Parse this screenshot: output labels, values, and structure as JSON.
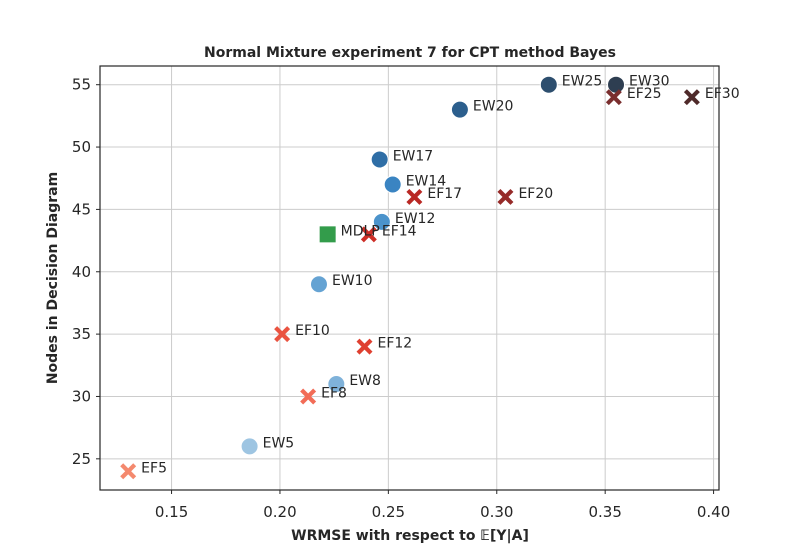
{
  "chart_data": {
    "type": "scatter",
    "title": "Normal Mixture experiment 7 for CPT method Bayes",
    "xlabel": "WRMSE with respect to 𝔼[Y|A]",
    "ylabel": "Nodes in Decision Diagram",
    "xlim": [
      0.117,
      0.4025
    ],
    "ylim": [
      22.5,
      56.5
    ],
    "xticks": [
      0.15,
      0.2,
      0.25,
      0.3,
      0.35,
      0.4
    ],
    "xtick_labels": [
      "0.15",
      "0.20",
      "0.25",
      "0.30",
      "0.35",
      "0.40"
    ],
    "yticks": [
      25,
      30,
      35,
      40,
      45,
      50,
      55
    ],
    "ytick_labels": [
      "25",
      "30",
      "35",
      "40",
      "45",
      "50",
      "55"
    ],
    "grid": true,
    "points": [
      {
        "label": "EF5",
        "x": 0.13,
        "y": 24,
        "marker": "x",
        "color": "#f4896e"
      },
      {
        "label": "EW5",
        "x": 0.186,
        "y": 26,
        "marker": "circle",
        "color": "#9ec5e2"
      },
      {
        "label": "EF8",
        "x": 0.213,
        "y": 30,
        "marker": "x",
        "color": "#f26c57"
      },
      {
        "label": "EW8",
        "x": 0.226,
        "y": 31,
        "marker": "circle",
        "color": "#7fb2da"
      },
      {
        "label": "EF10",
        "x": 0.201,
        "y": 35,
        "marker": "x",
        "color": "#ea5340"
      },
      {
        "label": "EF12",
        "x": 0.239,
        "y": 34,
        "marker": "x",
        "color": "#df4030"
      },
      {
        "label": "EW10",
        "x": 0.218,
        "y": 39,
        "marker": "circle",
        "color": "#65a3d3"
      },
      {
        "label": "MDLP",
        "x": 0.222,
        "y": 43,
        "marker": "square",
        "color": "#339c4b"
      },
      {
        "label": "EF14",
        "x": 0.241,
        "y": 43,
        "marker": "x",
        "color": "#cd2e26"
      },
      {
        "label": "EW12",
        "x": 0.247,
        "y": 44,
        "marker": "circle",
        "color": "#4b93cb"
      },
      {
        "label": "EF17",
        "x": 0.262,
        "y": 46,
        "marker": "x",
        "color": "#b92824"
      },
      {
        "label": "EW14",
        "x": 0.252,
        "y": 47,
        "marker": "circle",
        "color": "#3a84c2"
      },
      {
        "label": "EF20",
        "x": 0.304,
        "y": 46,
        "marker": "x",
        "color": "#962b29"
      },
      {
        "label": "EW17",
        "x": 0.246,
        "y": 49,
        "marker": "circle",
        "color": "#2f6ea6"
      },
      {
        "label": "EW20",
        "x": 0.283,
        "y": 53,
        "marker": "circle",
        "color": "#2c5f8d"
      },
      {
        "label": "EW25",
        "x": 0.324,
        "y": 55,
        "marker": "circle",
        "color": "#2d4e6e"
      },
      {
        "label": "EW30",
        "x": 0.355,
        "y": 55,
        "marker": "circle",
        "color": "#2e3e51"
      },
      {
        "label": "EF25",
        "x": 0.354,
        "y": 54,
        "marker": "x",
        "color": "#7a2e2e"
      },
      {
        "label": "EF30",
        "x": 0.39,
        "y": 54,
        "marker": "x",
        "color": "#4f2a2a"
      }
    ]
  }
}
